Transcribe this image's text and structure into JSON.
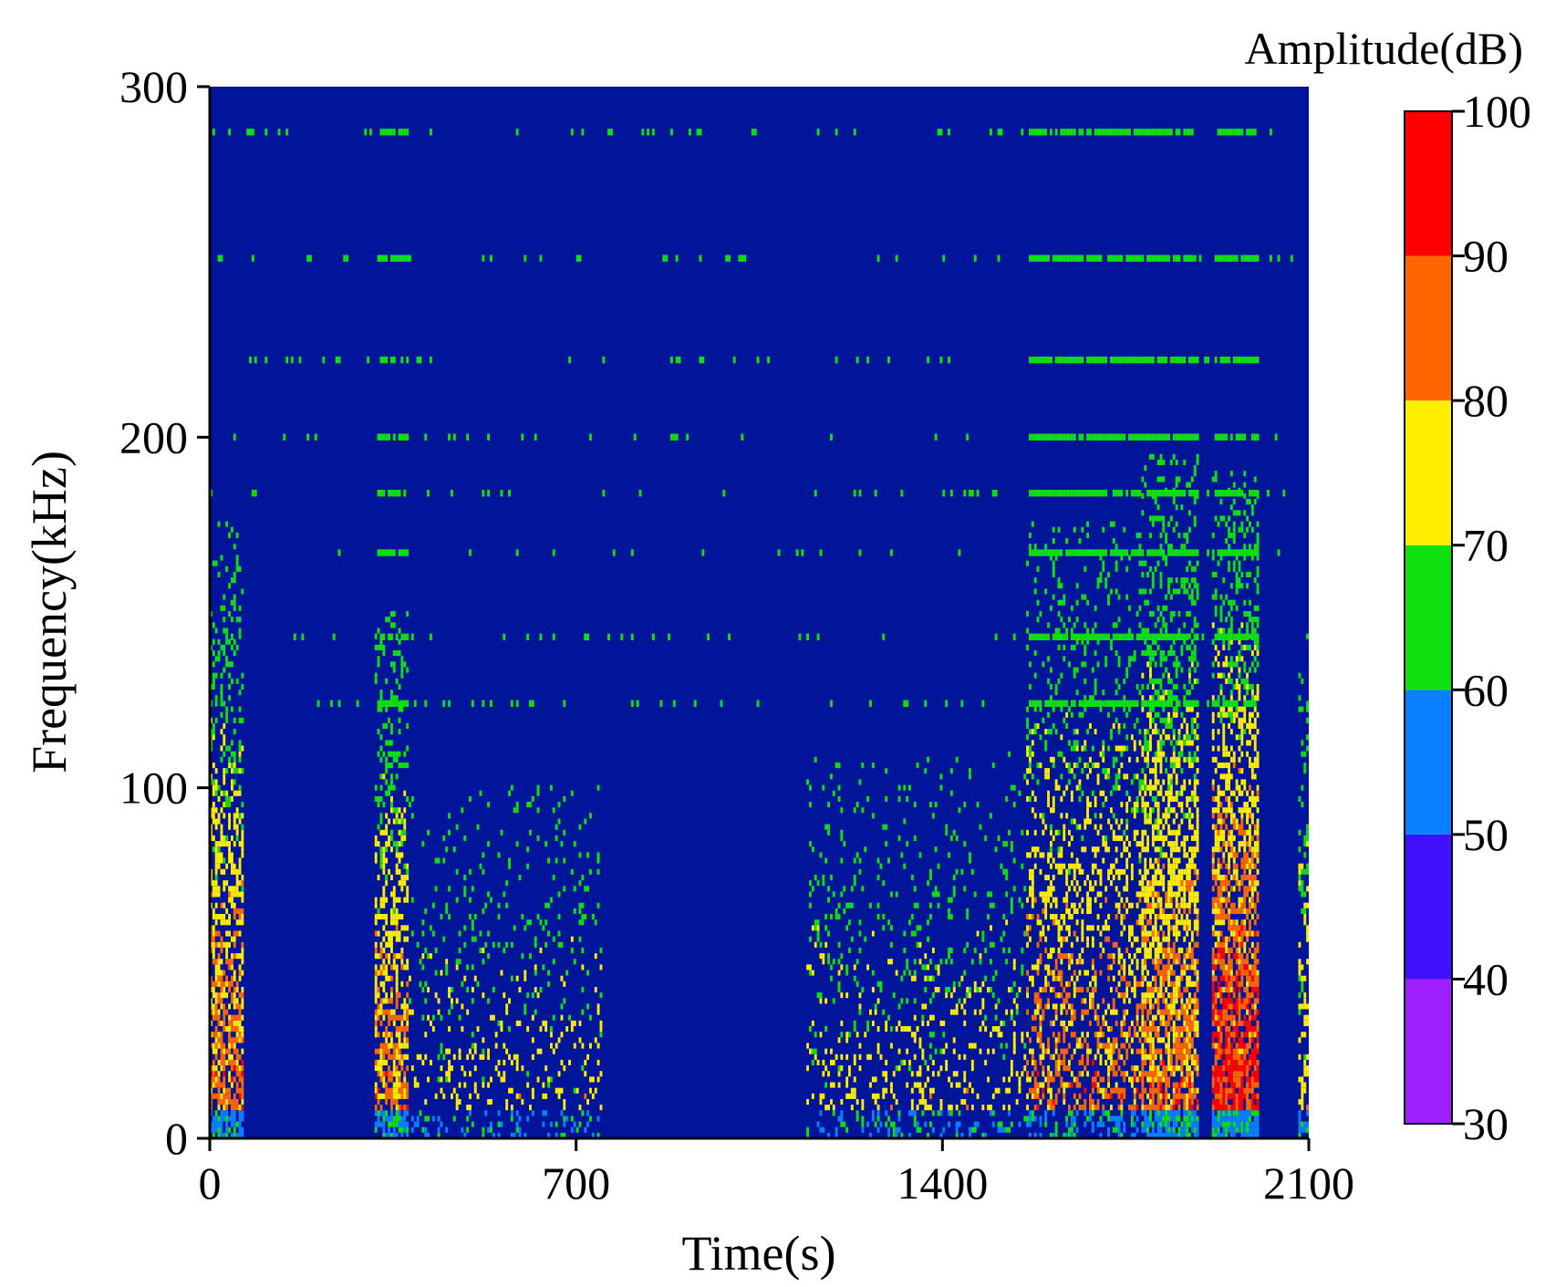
{
  "chart_data": {
    "type": "heatmap",
    "title": "",
    "xlabel": "Time(s)",
    "ylabel": "Frequency(kHz)",
    "xlim": [
      0,
      2100
    ],
    "ylim": [
      0,
      300
    ],
    "xticks": [
      "0",
      "700",
      "1400",
      "2100"
    ],
    "yticks": [
      "0",
      "100",
      "200",
      "300"
    ],
    "background_color": "#00159a",
    "colorbar": {
      "title": "Amplitude(dB)",
      "min": 30,
      "max": 100,
      "ticks": [
        "30",
        "40",
        "50",
        "60",
        "70",
        "80",
        "90",
        "100"
      ],
      "bins": [
        {
          "range": [
            30,
            40
          ],
          "color": "#a020ff"
        },
        {
          "range": [
            40,
            50
          ],
          "color": "#4010ff"
        },
        {
          "range": [
            50,
            60
          ],
          "color": "#0a7fff"
        },
        {
          "range": [
            60,
            70
          ],
          "color": "#10e010"
        },
        {
          "range": [
            70,
            80
          ],
          "color": "#ffee00"
        },
        {
          "range": [
            80,
            90
          ],
          "color": "#ff6600"
        },
        {
          "range": [
            90,
            100
          ],
          "color": "#ff0000"
        }
      ]
    },
    "bursts": [
      {
        "t_start": 0,
        "t_end": 65,
        "f_max": 175,
        "peak_dB": 90,
        "density": 0.75
      },
      {
        "t_start": 315,
        "t_end": 380,
        "f_max": 150,
        "peak_dB": 90,
        "density": 0.7
      },
      {
        "t_start": 380,
        "t_end": 750,
        "f_max": 100,
        "peak_dB": 80,
        "density": 0.2
      },
      {
        "t_start": 1140,
        "t_end": 1560,
        "f_max": 110,
        "peak_dB": 80,
        "density": 0.22
      },
      {
        "t_start": 1560,
        "t_end": 1780,
        "f_max": 175,
        "peak_dB": 90,
        "density": 0.45
      },
      {
        "t_start": 1780,
        "t_end": 1890,
        "f_max": 195,
        "peak_dB": 90,
        "density": 0.85
      },
      {
        "t_start": 1915,
        "t_end": 2005,
        "f_max": 190,
        "peak_dB": 100,
        "density": 0.9
      },
      {
        "t_start": 2080,
        "t_end": 2100,
        "f_max": 150,
        "peak_dB": 80,
        "density": 0.5
      }
    ],
    "harmonic_lines_kHz": [
      287,
      251,
      222,
      200,
      184,
      167,
      143,
      124
    ]
  }
}
